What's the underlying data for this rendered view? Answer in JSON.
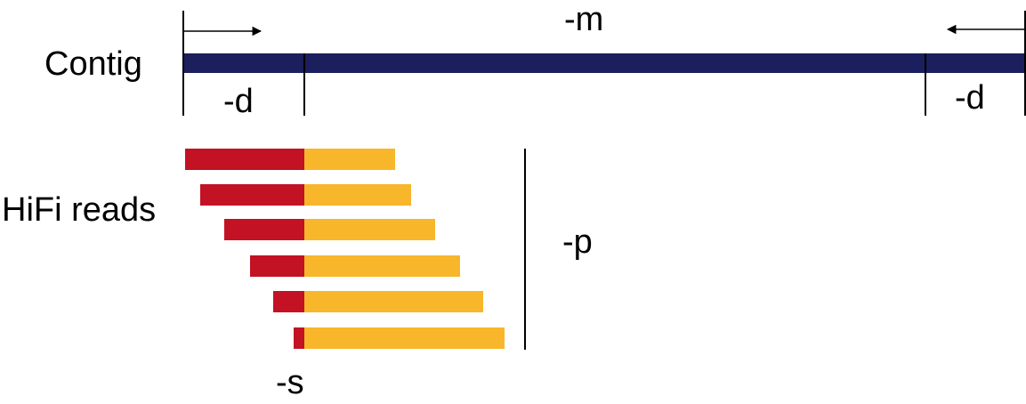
{
  "labels": {
    "contig": "Contig",
    "hifi_reads": "HiFi reads",
    "param_m": "-m",
    "param_d_left": "-d",
    "param_d_right": "-d",
    "param_p": "-p",
    "param_s": "-s"
  },
  "colors": {
    "contig": "#1b1f5e",
    "read_left": "#c21223",
    "read_right": "#f8b62b",
    "line": "#000000"
  },
  "icons": {
    "left_arrow": "arrow-right-icon",
    "right_arrow": "arrow-left-icon"
  },
  "reads_count": 6
}
